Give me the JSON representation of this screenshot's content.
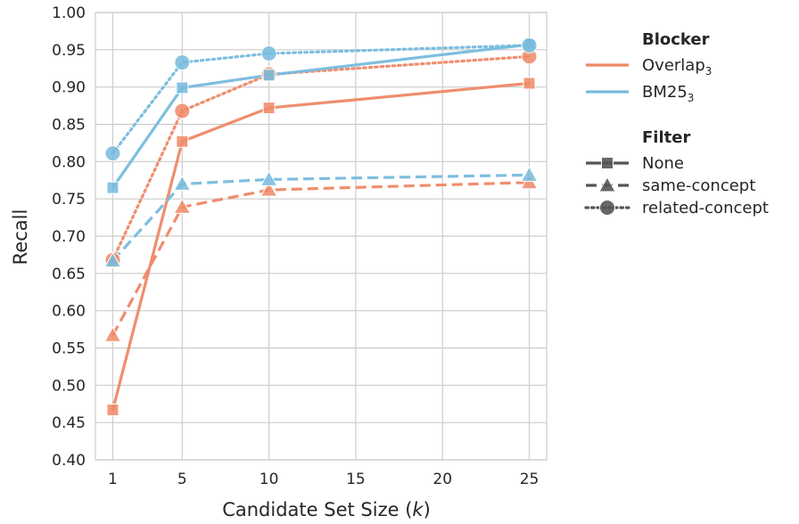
{
  "chart_data": {
    "type": "line",
    "xlabel": "Candidate Set Size (k)",
    "xlabel_parts": {
      "prefix": "Candidate Set Size (",
      "var": "k",
      "suffix": ")"
    },
    "ylabel": "Recall",
    "x": [
      1,
      5,
      10,
      25
    ],
    "xticks": [
      1,
      5,
      10,
      15,
      20,
      25
    ],
    "xlim": [
      0,
      26
    ],
    "ylim": [
      0.4,
      1.0
    ],
    "yticks": [
      0.4,
      0.45,
      0.5,
      0.55,
      0.6,
      0.65,
      0.7,
      0.75,
      0.8,
      0.85,
      0.9,
      0.95,
      1.0
    ],
    "ytick_labels": [
      "0.40",
      "0.45",
      "0.50",
      "0.55",
      "0.60",
      "0.65",
      "0.70",
      "0.75",
      "0.80",
      "0.85",
      "0.90",
      "0.95",
      "1.00"
    ],
    "grid": true,
    "legend_position": "right",
    "series": [
      {
        "blocker": "Overlap3",
        "filter": "None",
        "values": [
          0.467,
          0.827,
          0.872,
          0.905
        ]
      },
      {
        "blocker": "Overlap3",
        "filter": "same-concept",
        "values": [
          0.567,
          0.739,
          0.762,
          0.772
        ]
      },
      {
        "blocker": "Overlap3",
        "filter": "related-concept",
        "values": [
          0.668,
          0.868,
          0.917,
          0.941
        ]
      },
      {
        "blocker": "BM253",
        "filter": "None",
        "values": [
          0.765,
          0.899,
          0.916,
          0.957
        ]
      },
      {
        "blocker": "BM253",
        "filter": "same-concept",
        "values": [
          0.667,
          0.77,
          0.776,
          0.782
        ]
      },
      {
        "blocker": "BM253",
        "filter": "related-concept",
        "values": [
          0.811,
          0.933,
          0.945,
          0.956
        ]
      }
    ],
    "legend": {
      "blocker_title": "Blocker",
      "blockers": [
        {
          "key": "Overlap3",
          "base": "Overlap",
          "sub": "3",
          "color": "#ee8866"
        },
        {
          "key": "BM253",
          "base": "BM25",
          "sub": "3",
          "color": "#77bbdd"
        }
      ],
      "filter_title": "Filter",
      "filters": [
        {
          "key": "None",
          "label": "None",
          "marker": "square",
          "dash": "solid"
        },
        {
          "key": "same-concept",
          "label": "same-concept",
          "marker": "triangle",
          "dash": "dashed"
        },
        {
          "key": "related-concept",
          "label": "related-concept",
          "marker": "circle",
          "dash": "dotted"
        }
      ]
    },
    "colors": {
      "Overlap3": "#ee8866",
      "BM253": "#77bbdd",
      "grid": "#cccccc",
      "legend_marker": "#555555"
    }
  }
}
